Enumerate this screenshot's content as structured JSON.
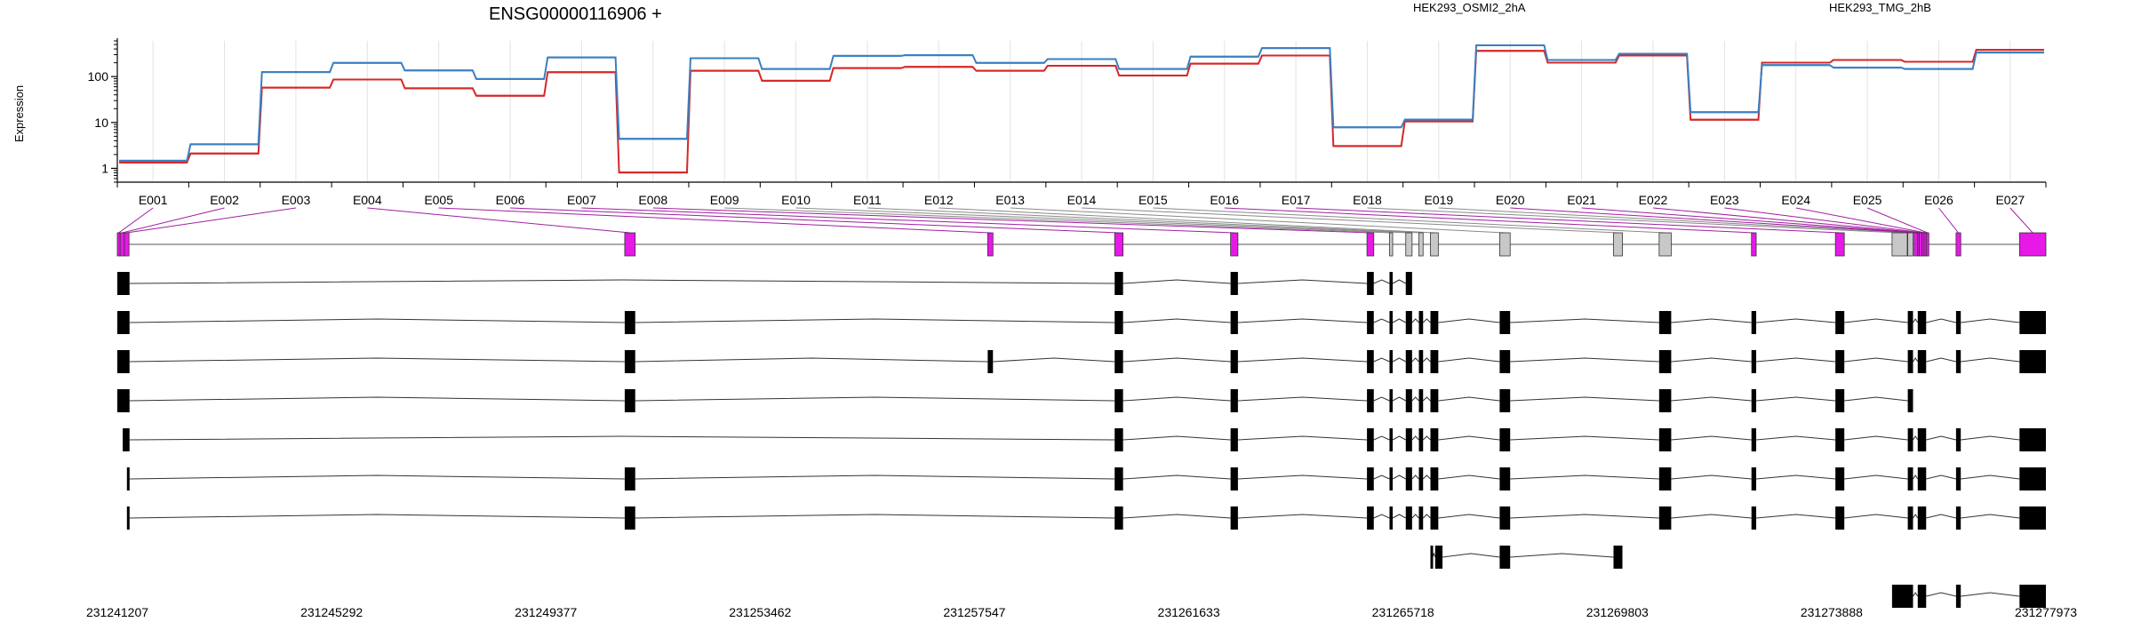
{
  "chart_data": {
    "type": "line",
    "title": "ENSG00000116906 +",
    "ylabel": "Expression",
    "yscale": "log",
    "ylim": [
      0.5,
      600
    ],
    "yticks": [
      1,
      10,
      100
    ],
    "ytick_labels": [
      "1",
      "10",
      "100"
    ],
    "grid": "vertical",
    "legend_placement": "top-right",
    "categories": [
      "E001",
      "E002",
      "E003",
      "E004",
      "E005",
      "E006",
      "E007",
      "E008",
      "E009",
      "E010",
      "E011",
      "E012",
      "E013",
      "E014",
      "E015",
      "E016",
      "E017",
      "E018",
      "E019",
      "E020",
      "E021",
      "E022",
      "E023",
      "E024",
      "E025",
      "E026",
      "E027"
    ],
    "series": [
      {
        "name": "HEK293_OSMI2_2hA",
        "color": "#d62728",
        "values": [
          1.4,
          2.2,
          60,
          90,
          58,
          40,
          130,
          0.85,
          140,
          85,
          160,
          170,
          140,
          180,
          110,
          200,
          300,
          3.2,
          11,
          380,
          210,
          300,
          12,
          210,
          240,
          220,
          400
        ]
      },
      {
        "name": "HEK293_TMG_2hB",
        "color": "#3a7fc1",
        "values": [
          1.4,
          3.2,
          120,
          190,
          130,
          85,
          250,
          4.2,
          240,
          140,
          270,
          280,
          190,
          230,
          140,
          260,
          400,
          7.5,
          11,
          460,
          220,
          300,
          16,
          170,
          150,
          140,
          320
        ]
      }
    ],
    "genomic_coordinates": [
      "231241207",
      "231245292",
      "231249377",
      "231253462",
      "231257547",
      "231261633",
      "231265718",
      "231269803",
      "231273888",
      "231277973"
    ],
    "exon_bins": [
      {
        "id": "E001",
        "start": 231241207,
        "end": 231241260,
        "expressed": true
      },
      {
        "id": "E002",
        "start": 231241260,
        "end": 231241340,
        "expressed": true
      },
      {
        "id": "E003",
        "start": 231241340,
        "end": 231241430,
        "expressed": true
      },
      {
        "id": "E004",
        "start": 231250880,
        "end": 231251080,
        "expressed": true
      },
      {
        "id": "E005",
        "start": 231257800,
        "end": 231257900,
        "expressed": true
      },
      {
        "id": "E006",
        "start": 231260220,
        "end": 231260380,
        "expressed": true
      },
      {
        "id": "E007",
        "start": 231262430,
        "end": 231262570,
        "expressed": true
      },
      {
        "id": "E008",
        "start": 231265030,
        "end": 231265160,
        "expressed": true
      },
      {
        "id": "E009",
        "start": 231265460,
        "end": 231265520,
        "expressed": false
      },
      {
        "id": "E010",
        "start": 231265770,
        "end": 231265890,
        "expressed": false
      },
      {
        "id": "E011",
        "start": 231266020,
        "end": 231266100,
        "expressed": false
      },
      {
        "id": "E012",
        "start": 231266240,
        "end": 231266390,
        "expressed": false
      },
      {
        "id": "E013",
        "start": 231267560,
        "end": 231267760,
        "expressed": false
      },
      {
        "id": "E014",
        "start": 231269730,
        "end": 231269900,
        "expressed": false
      },
      {
        "id": "E015",
        "start": 231270600,
        "end": 231270830,
        "expressed": false
      },
      {
        "id": "E016",
        "start": 231272360,
        "end": 231272450,
        "expressed": true
      },
      {
        "id": "E017",
        "start": 231273960,
        "end": 231274130,
        "expressed": true
      },
      {
        "id": "E018",
        "start": 231275040,
        "end": 231275330,
        "expressed": false
      },
      {
        "id": "E019",
        "start": 231275340,
        "end": 231275440,
        "expressed": false
      },
      {
        "id": "E020",
        "start": 231275460,
        "end": 231275530,
        "expressed": true
      },
      {
        "id": "E021",
        "start": 231275530,
        "end": 231275560,
        "expressed": true
      },
      {
        "id": "E022",
        "start": 231275560,
        "end": 231275610,
        "expressed": true
      },
      {
        "id": "E023",
        "start": 231275610,
        "end": 231275650,
        "expressed": true
      },
      {
        "id": "E024",
        "start": 231275650,
        "end": 231275690,
        "expressed": true
      },
      {
        "id": "E025",
        "start": 231275690,
        "end": 231275720,
        "expressed": true
      },
      {
        "id": "E026",
        "start": 231276260,
        "end": 231276350,
        "expressed": true
      },
      {
        "id": "E027",
        "start": 231277470,
        "end": 231277973,
        "expressed": true
      }
    ],
    "transcripts": [
      [
        [
          231241207,
          231241440
        ],
        [
          231260220,
          231260380
        ],
        [
          231262430,
          231262570
        ],
        [
          231265030,
          231265160
        ],
        [
          231265460,
          231265520
        ],
        [
          231265770,
          231265890
        ]
      ],
      [
        [
          231241207,
          231241440
        ],
        [
          231250880,
          231251080
        ],
        [
          231260220,
          231260380
        ],
        [
          231262430,
          231262570
        ],
        [
          231265030,
          231265160
        ],
        [
          231265460,
          231265520
        ],
        [
          231265770,
          231265890
        ],
        [
          231266020,
          231266100
        ],
        [
          231266240,
          231266390
        ],
        [
          231267560,
          231267760
        ],
        [
          231270600,
          231270830
        ],
        [
          231272360,
          231272450
        ],
        [
          231273960,
          231274130
        ],
        [
          231275340,
          231275440
        ],
        [
          231275530,
          231275690
        ],
        [
          231276260,
          231276350
        ],
        [
          231277470,
          231277973
        ]
      ],
      [
        [
          231241207,
          231241440
        ],
        [
          231250880,
          231251080
        ],
        [
          231257800,
          231257900
        ],
        [
          231260220,
          231260380
        ],
        [
          231262430,
          231262570
        ],
        [
          231265030,
          231265160
        ],
        [
          231265460,
          231265520
        ],
        [
          231265770,
          231265890
        ],
        [
          231266020,
          231266100
        ],
        [
          231266240,
          231266390
        ],
        [
          231267560,
          231267760
        ],
        [
          231270600,
          231270830
        ],
        [
          231272360,
          231272450
        ],
        [
          231273960,
          231274130
        ],
        [
          231275340,
          231275440
        ],
        [
          231275530,
          231275690
        ],
        [
          231276260,
          231276350
        ],
        [
          231277470,
          231277973
        ]
      ],
      [
        [
          231241207,
          231241440
        ],
        [
          231250880,
          231251080
        ],
        [
          231260220,
          231260380
        ],
        [
          231262430,
          231262570
        ],
        [
          231265030,
          231265160
        ],
        [
          231265460,
          231265520
        ],
        [
          231265770,
          231265890
        ],
        [
          231266020,
          231266100
        ],
        [
          231266240,
          231266390
        ],
        [
          231267560,
          231267760
        ],
        [
          231270600,
          231270830
        ],
        [
          231272360,
          231272450
        ],
        [
          231273960,
          231274130
        ],
        [
          231275340,
          231275440
        ]
      ],
      [
        [
          231241310,
          231241440
        ],
        [
          231260220,
          231260380
        ],
        [
          231262430,
          231262570
        ],
        [
          231265030,
          231265160
        ],
        [
          231265460,
          231265520
        ],
        [
          231265770,
          231265890
        ],
        [
          231266020,
          231266100
        ],
        [
          231266240,
          231266390
        ],
        [
          231267560,
          231267760
        ],
        [
          231270600,
          231270830
        ],
        [
          231272360,
          231272450
        ],
        [
          231273960,
          231274130
        ],
        [
          231275340,
          231275440
        ],
        [
          231275530,
          231275690
        ],
        [
          231276260,
          231276350
        ],
        [
          231277470,
          231277973
        ]
      ],
      [
        [
          231241390,
          231241440
        ],
        [
          231250880,
          231251080
        ],
        [
          231260220,
          231260380
        ],
        [
          231262430,
          231262570
        ],
        [
          231265030,
          231265160
        ],
        [
          231265460,
          231265520
        ],
        [
          231265770,
          231265890
        ],
        [
          231266020,
          231266100
        ],
        [
          231266240,
          231266390
        ],
        [
          231267560,
          231267760
        ],
        [
          231270600,
          231270830
        ],
        [
          231272360,
          231272450
        ],
        [
          231273960,
          231274130
        ],
        [
          231275340,
          231275440
        ],
        [
          231275530,
          231275690
        ],
        [
          231276260,
          231276350
        ],
        [
          231277470,
          231277973
        ]
      ],
      [
        [
          231241390,
          231241440
        ],
        [
          231250880,
          231251080
        ],
        [
          231260220,
          231260380
        ],
        [
          231262430,
          231262570
        ],
        [
          231265030,
          231265160
        ],
        [
          231265460,
          231265520
        ],
        [
          231265770,
          231265890
        ],
        [
          231266020,
          231266100
        ],
        [
          231266240,
          231266390
        ],
        [
          231267560,
          231267760
        ],
        [
          231270600,
          231270830
        ],
        [
          231272360,
          231272450
        ],
        [
          231273960,
          231274130
        ],
        [
          231275340,
          231275440
        ],
        [
          231275530,
          231275690
        ],
        [
          231276260,
          231276350
        ],
        [
          231277470,
          231277973
        ]
      ],
      [
        [
          231266240,
          231266280
        ],
        [
          231266330,
          231266470
        ],
        [
          231267560,
          231267760
        ],
        [
          231269730,
          231269900
        ]
      ],
      [
        [
          231275040,
          231275440
        ],
        [
          231275530,
          231275690
        ],
        [
          231276260,
          231276350
        ],
        [
          231277470,
          231277973
        ]
      ]
    ]
  }
}
